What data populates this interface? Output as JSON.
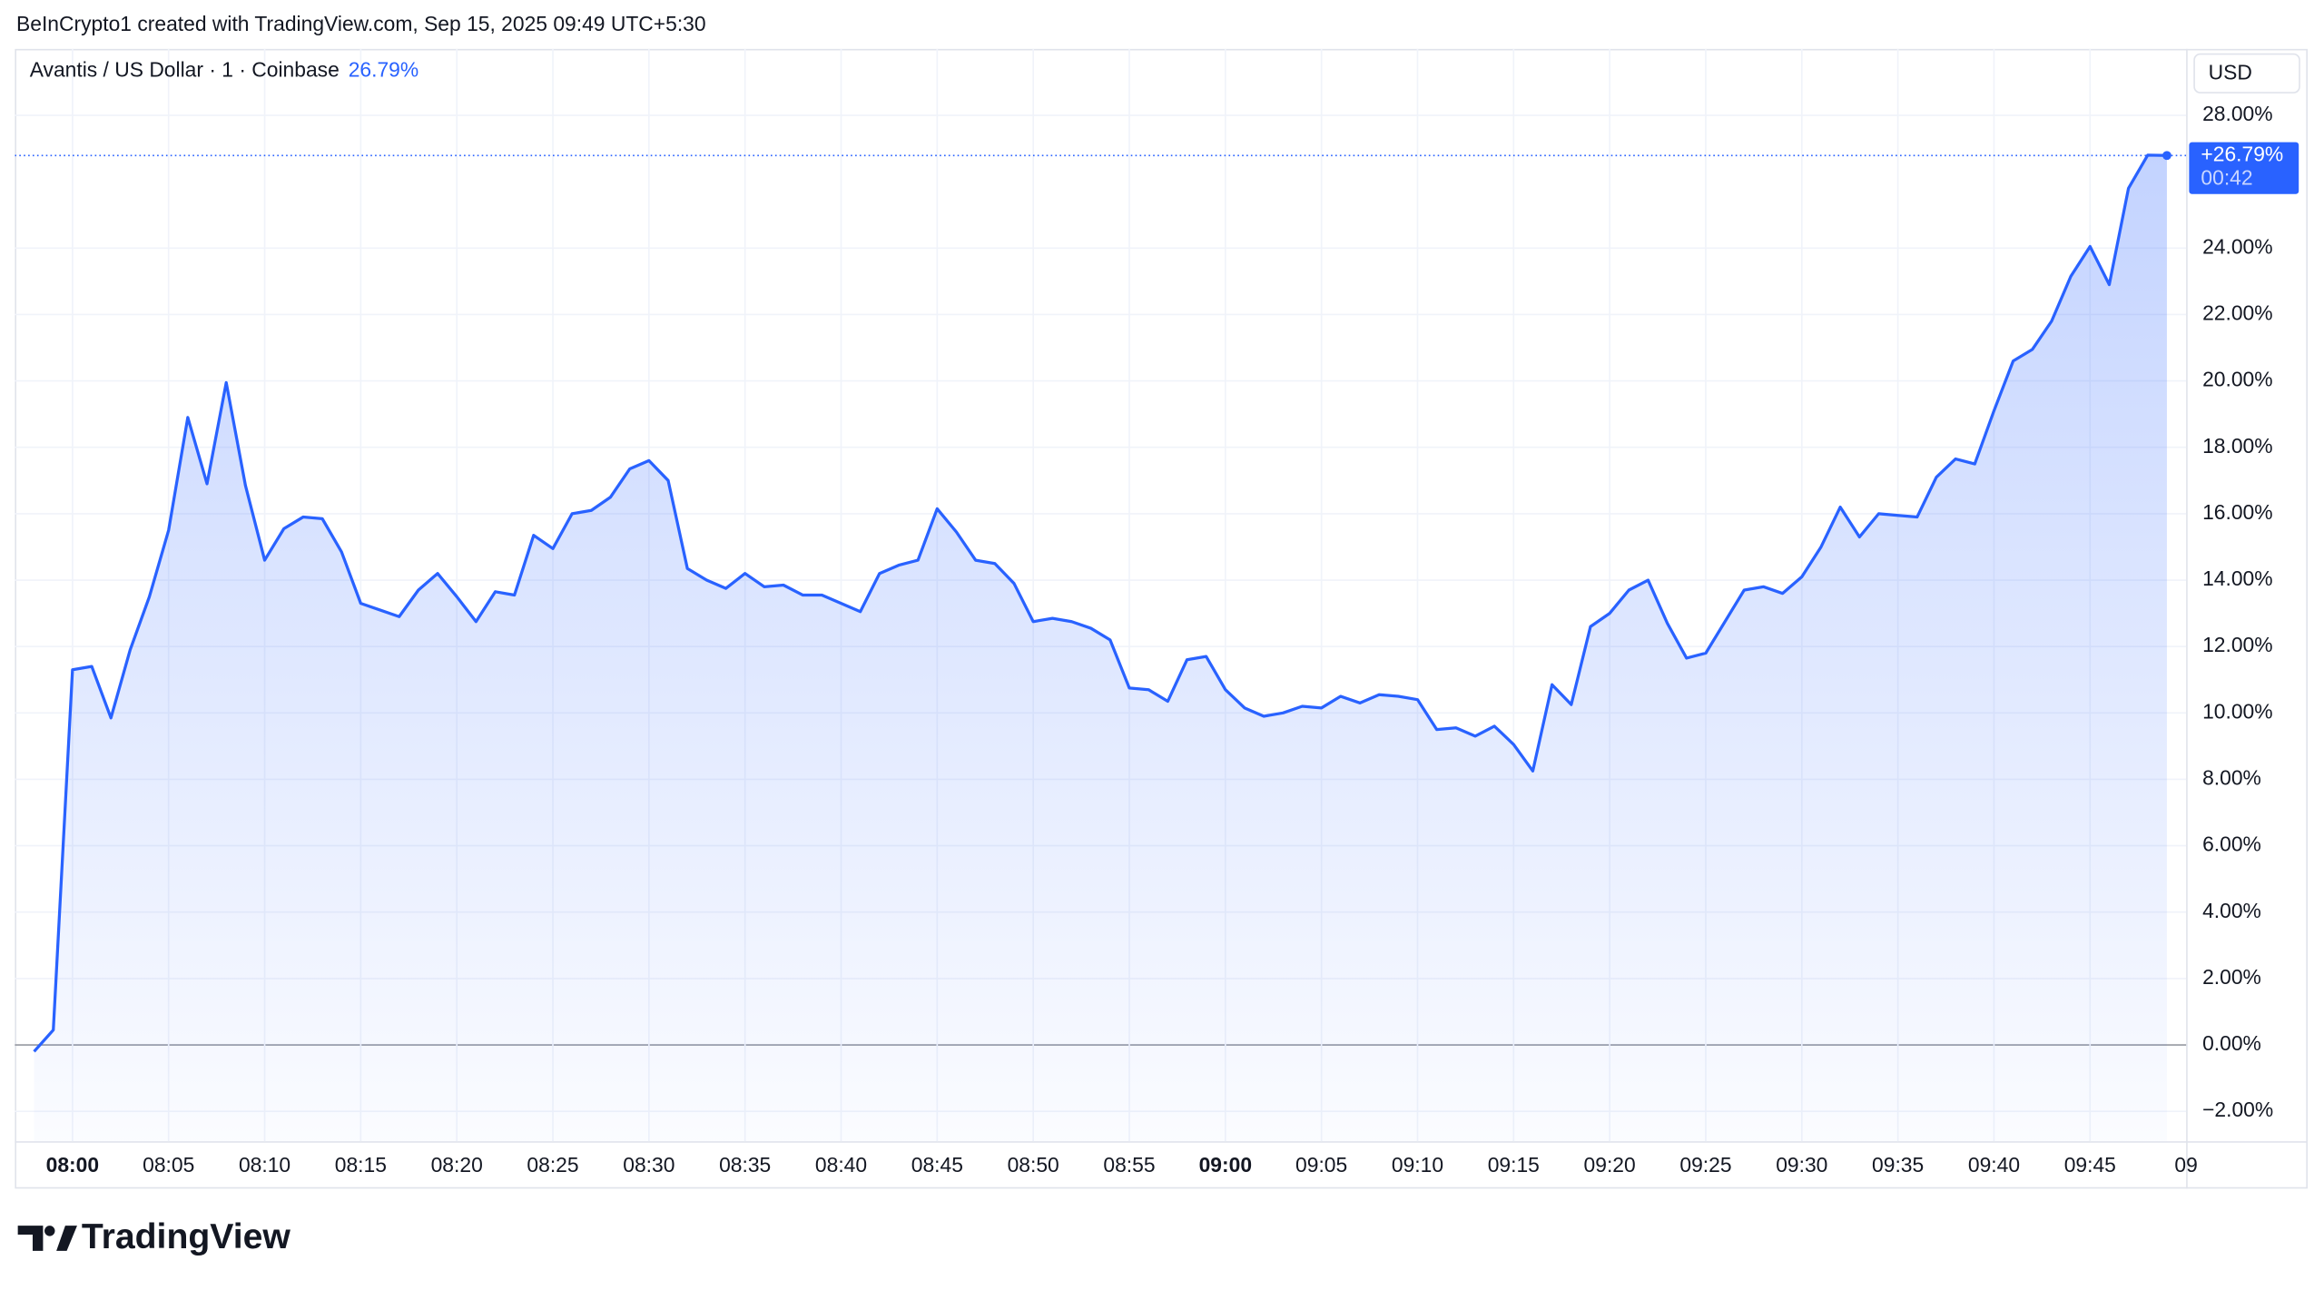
{
  "header": {
    "attribution": "BeInCrypto1 created with TradingView.com, Sep 15, 2025 09:49 UTC+5:30",
    "symbol": "Avantis / US Dollar · 1 · Coinbase",
    "legend_value": "26.79%",
    "currency": "USD"
  },
  "chart_data": {
    "type": "area",
    "color": "#2962ff",
    "grid": true,
    "x": [
      "07:58",
      "07:59",
      "08:00",
      "08:01",
      "08:02",
      "08:03",
      "08:04",
      "08:05",
      "08:06",
      "08:07",
      "08:08",
      "08:09",
      "08:10",
      "08:11",
      "08:12",
      "08:13",
      "08:14",
      "08:15",
      "08:16",
      "08:17",
      "08:18",
      "08:19",
      "08:20",
      "08:21",
      "08:22",
      "08:23",
      "08:24",
      "08:25",
      "08:26",
      "08:27",
      "08:28",
      "08:29",
      "08:30",
      "08:31",
      "08:32",
      "08:33",
      "08:34",
      "08:35",
      "08:36",
      "08:37",
      "08:38",
      "08:39",
      "08:40",
      "08:41",
      "08:42",
      "08:43",
      "08:44",
      "08:45",
      "08:46",
      "08:47",
      "08:48",
      "08:49",
      "08:50",
      "08:51",
      "08:52",
      "08:53",
      "08:54",
      "08:55",
      "08:56",
      "08:57",
      "08:58",
      "08:59",
      "09:00",
      "09:01",
      "09:02",
      "09:03",
      "09:04",
      "09:05",
      "09:06",
      "09:07",
      "09:08",
      "09:09",
      "09:10",
      "09:11",
      "09:12",
      "09:13",
      "09:14",
      "09:15",
      "09:16",
      "09:17",
      "09:18",
      "09:19",
      "09:20",
      "09:21",
      "09:22",
      "09:23",
      "09:24",
      "09:25",
      "09:26",
      "09:27",
      "09:28",
      "09:29",
      "09:30",
      "09:31",
      "09:32",
      "09:33",
      "09:34",
      "09:35",
      "09:36",
      "09:37",
      "09:38",
      "09:39",
      "09:40",
      "09:41",
      "09:42",
      "09:43",
      "09:44",
      "09:45",
      "09:46",
      "09:47",
      "09:48",
      "09:49"
    ],
    "values": [
      -0.2,
      0.45,
      11.3,
      11.4,
      9.85,
      11.9,
      13.5,
      15.5,
      18.9,
      16.9,
      19.95,
      16.85,
      14.6,
      15.55,
      15.9,
      15.85,
      14.85,
      13.3,
      13.1,
      12.9,
      13.7,
      14.2,
      13.5,
      12.75,
      13.65,
      13.55,
      15.35,
      14.95,
      16.0,
      16.1,
      16.5,
      17.35,
      17.6,
      17.0,
      14.35,
      14.0,
      13.75,
      14.2,
      13.8,
      13.85,
      13.55,
      13.55,
      13.3,
      13.05,
      14.2,
      14.45,
      14.6,
      16.15,
      15.45,
      14.6,
      14.5,
      13.9,
      12.75,
      12.85,
      12.75,
      12.55,
      12.2,
      10.75,
      10.7,
      10.35,
      11.6,
      11.7,
      10.7,
      10.15,
      9.9,
      10.0,
      10.2,
      10.15,
      10.5,
      10.3,
      10.55,
      10.5,
      10.4,
      9.5,
      9.55,
      9.3,
      9.6,
      9.05,
      8.25,
      10.85,
      10.25,
      12.6,
      13.0,
      13.7,
      14.0,
      12.7,
      11.65,
      11.8,
      12.75,
      13.7,
      13.8,
      13.6,
      14.1,
      15.0,
      16.2,
      15.3,
      16.0,
      15.95,
      15.9,
      17.1,
      17.65,
      17.5,
      19.1,
      20.6,
      20.95,
      21.8,
      23.15,
      24.05,
      22.9,
      25.8,
      26.8,
      26.79
    ],
    "xlim": [
      "07:57",
      "09:50"
    ],
    "xticks": [
      "08:00",
      "08:05",
      "08:10",
      "08:15",
      "08:20",
      "08:25",
      "08:30",
      "08:35",
      "08:40",
      "08:45",
      "08:50",
      "08:55",
      "09:00",
      "09:05",
      "09:10",
      "09:15",
      "09:20",
      "09:25",
      "09:30",
      "09:35",
      "09:40",
      "09:45",
      {
        "value": "09:50",
        "label": "09"
      }
    ],
    "ylim": [
      -2.9,
      30
    ],
    "yticks": [
      {
        "value": -2,
        "label": "−2.00%"
      },
      {
        "value": 0,
        "label": "0.00%"
      },
      {
        "value": 2,
        "label": "2.00%"
      },
      {
        "value": 4,
        "label": "4.00%"
      },
      {
        "value": 6,
        "label": "6.00%"
      },
      {
        "value": 8,
        "label": "8.00%"
      },
      {
        "value": 10,
        "label": "10.00%"
      },
      {
        "value": 12,
        "label": "12.00%"
      },
      {
        "value": 14,
        "label": "14.00%"
      },
      {
        "value": 16,
        "label": "16.00%"
      },
      {
        "value": 18,
        "label": "18.00%"
      },
      {
        "value": 20,
        "label": "20.00%"
      },
      {
        "value": 22,
        "label": "22.00%"
      },
      {
        "value": 24,
        "label": "24.00%"
      },
      {
        "value": 28,
        "label": "28.00%"
      }
    ],
    "price_label": {
      "value": 26.79,
      "label": "+26.79%"
    },
    "countdown": "00:42"
  },
  "footer": {
    "brand": "TradingView"
  }
}
